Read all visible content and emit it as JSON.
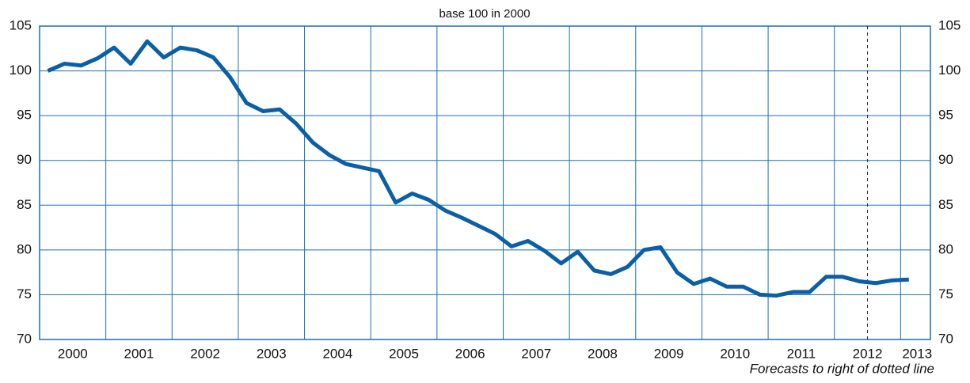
{
  "chart_data": {
    "type": "line",
    "title": "base 100 in 2000",
    "annotation": "Forecasts to right of dotted line",
    "x": [
      2000.125,
      2000.375,
      2000.625,
      2000.875,
      2001.125,
      2001.375,
      2001.625,
      2001.875,
      2002.125,
      2002.375,
      2002.625,
      2002.875,
      2003.125,
      2003.375,
      2003.625,
      2003.875,
      2004.125,
      2004.375,
      2004.625,
      2004.875,
      2005.125,
      2005.375,
      2005.625,
      2005.875,
      2006.125,
      2006.375,
      2006.625,
      2006.875,
      2007.125,
      2007.375,
      2007.625,
      2007.875,
      2008.125,
      2008.375,
      2008.625,
      2008.875,
      2009.125,
      2009.375,
      2009.625,
      2009.875,
      2010.125,
      2010.375,
      2010.625,
      2010.875,
      2011.125,
      2011.375,
      2011.625,
      2011.875,
      2012.125,
      2012.375,
      2012.625,
      2012.875,
      2013.125
    ],
    "series": [
      {
        "color": "#0a5fa5",
        "values": [
          100,
          100.8,
          100.6,
          101.4,
          102.6,
          100.8,
          103.3,
          101.5,
          102.6,
          102.3,
          101.5,
          99.3,
          96.4,
          95.5,
          95.7,
          94.1,
          92,
          90.6,
          89.6,
          89.2,
          88.8,
          85.3,
          86.3,
          85.6,
          84.4,
          83.6,
          82.7,
          81.8,
          80.4,
          81,
          79.9,
          78.5,
          79.8,
          77.7,
          77.3,
          78.1,
          80,
          80.3,
          77.5,
          76.2,
          76.8,
          75.9,
          75.9,
          75,
          74.9,
          75.3,
          75.3,
          77,
          77,
          76.5,
          76.3,
          76.6,
          76.7
        ]
      }
    ],
    "xlim": [
      2000,
      2013.45
    ],
    "xgrid": [
      2001,
      2002,
      2003,
      2004,
      2005,
      2006,
      2007,
      2008,
      2009,
      2010,
      2011,
      2012,
      2013
    ],
    "xticks": [
      {
        "value": 2000.5,
        "label": "2000"
      },
      {
        "value": 2001.5,
        "label": "2001"
      },
      {
        "value": 2002.5,
        "label": "2002"
      },
      {
        "value": 2003.5,
        "label": "2003"
      },
      {
        "value": 2004.5,
        "label": "2004"
      },
      {
        "value": 2005.5,
        "label": "2005"
      },
      {
        "value": 2006.5,
        "label": "2006"
      },
      {
        "value": 2007.5,
        "label": "2007"
      },
      {
        "value": 2008.5,
        "label": "2008"
      },
      {
        "value": 2009.5,
        "label": "2009"
      },
      {
        "value": 2010.5,
        "label": "2010"
      },
      {
        "value": 2011.5,
        "label": "2011"
      },
      {
        "value": 2012.5,
        "label": "2012"
      },
      {
        "value": 2013.25,
        "label": "2013"
      }
    ],
    "forecast_start": 2012.5,
    "ylim": [
      70,
      105
    ],
    "yticks": [
      70,
      75,
      80,
      85,
      90,
      95,
      100,
      105
    ],
    "grid": true
  }
}
